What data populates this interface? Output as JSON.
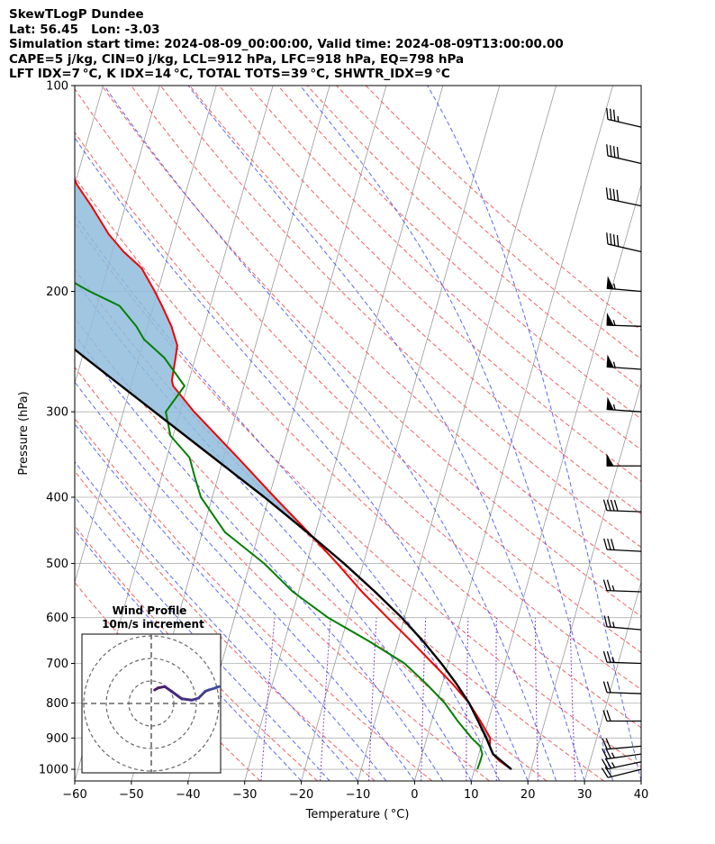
{
  "header": {
    "title": "SkewTLogP Dundee",
    "location": "Lat: 56.45   Lon: -3.03",
    "times": "Simulation start time: 2024-08-09_00:00:00, Valid time: 2024-08-09T13:00:00.00",
    "params": "CAPE=5 j/kg, CIN=0 j/kg, LCL=912 hPa, LFC=918 hPa, EQ=798 hPa",
    "indices": "LFT IDX=7$^\\circ$C, K IDX=14$^\\circ$C, TOTAL TOTS=39$^\\circ$C, SHWTR_IDX=9$^\\circ$C"
  },
  "chart_data": {
    "type": "line",
    "title": "",
    "xlabel": "Temperature ($^\\circ$C)",
    "ylabel": "Pressure (hPa)",
    "xlim": [
      -60,
      40
    ],
    "ylim": [
      1040,
      100
    ],
    "y_scale": "log",
    "skew": 35,
    "x_ticks": [
      -60,
      -50,
      -40,
      -30,
      -20,
      -10,
      0,
      10,
      20,
      30,
      40
    ],
    "x_tick_labels": [
      "−60",
      "−50",
      "−40",
      "−30",
      "−20",
      "−10",
      "0",
      "10",
      "20",
      "30",
      "40"
    ],
    "y_ticks": [
      1000,
      900,
      800,
      700,
      600,
      500,
      400,
      300,
      200,
      100
    ],
    "y_tick_labels": [
      "1000",
      "900",
      "800",
      "700",
      "600",
      "500",
      "400",
      "300",
      "200",
      "100"
    ],
    "grid": true,
    "colors": {
      "temperature": "#ee0000",
      "dewpoint": "#008000",
      "parcel": "#000000",
      "cape_fill": "#8fbcdc",
      "dry_adiabat": "#ee4444",
      "moist_adiabat": "#3344ee",
      "mixing_ratio": "#6a1fbf",
      "isotherm": "#9a9a9a"
    },
    "series": [
      {
        "role": "temperature",
        "pressure": [
          1000,
          970,
          950,
          925,
          900,
          850,
          800,
          750,
          700,
          650,
          600,
          550,
          500,
          450,
          400,
          350,
          300,
          275,
          270,
          250,
          240,
          225,
          210,
          200,
          185,
          175,
          165,
          150,
          140,
          125,
          110,
          100
        ],
        "values": [
          16.5,
          13.8,
          12.5,
          11.5,
          11.2,
          8.6,
          5.7,
          1.8,
          -2.7,
          -7.6,
          -13.0,
          -18.8,
          -24.6,
          -31.3,
          -39.0,
          -47.5,
          -57.5,
          -62.5,
          -63.0,
          -63.5,
          -63.8,
          -65.8,
          -68.5,
          -70.5,
          -74.0,
          -78.0,
          -81.5,
          -86.0,
          -89.5,
          -94.0,
          -97.0,
          -99.0
        ]
      },
      {
        "role": "dewpoint",
        "pressure": [
          1000,
          970,
          950,
          925,
          900,
          850,
          800,
          750,
          700,
          650,
          600,
          550,
          500,
          450,
          400,
          375,
          350,
          325,
          300,
          275,
          250,
          235,
          225,
          210,
          200,
          185,
          175,
          165,
          155,
          140,
          130,
          120,
          100
        ],
        "values": [
          10.5,
          10.6,
          10.6,
          9.8,
          7.9,
          4.6,
          1.4,
          -2.8,
          -7.7,
          -15.0,
          -23.5,
          -31.0,
          -37.5,
          -46.0,
          -52.0,
          -54.0,
          -56.0,
          -60.5,
          -62.5,
          -60.5,
          -65.5,
          -70.0,
          -72.0,
          -76.0,
          -82.0,
          -90.5,
          -92.0,
          -95.5,
          -94.0,
          -97.5,
          -97.5,
          -100.0,
          -107.0
        ]
      },
      {
        "role": "parcel",
        "pressure": [
          1000,
          950,
          925,
          900,
          850,
          800,
          750,
          700,
          650,
          600,
          550,
          500,
          450,
          400,
          350,
          300,
          250,
          200,
          150,
          100
        ],
        "values": [
          16.5,
          12.5,
          11.5,
          10.5,
          8.2,
          5.7,
          2.5,
          -1.2,
          -5.5,
          -10.5,
          -16.5,
          -23.4,
          -31.5,
          -40.8,
          -51.8,
          -64.5,
          -79.5,
          -97.5,
          -121.0,
          -153.0
        ]
      }
    ],
    "wind_barbs": [
      {
        "pressure": 1000,
        "speed_kt": 20,
        "direction_deg": 256
      },
      {
        "pressure": 975,
        "speed_kt": 25,
        "direction_deg": 258
      },
      {
        "pressure": 950,
        "speed_kt": 25,
        "direction_deg": 262
      },
      {
        "pressure": 925,
        "speed_kt": 20,
        "direction_deg": 265
      },
      {
        "pressure": 850,
        "speed_kt": 20,
        "direction_deg": 270
      },
      {
        "pressure": 775,
        "speed_kt": 20,
        "direction_deg": 272
      },
      {
        "pressure": 700,
        "speed_kt": 25,
        "direction_deg": 272
      },
      {
        "pressure": 625,
        "speed_kt": 25,
        "direction_deg": 275
      },
      {
        "pressure": 550,
        "speed_kt": 25,
        "direction_deg": 272
      },
      {
        "pressure": 480,
        "speed_kt": 30,
        "direction_deg": 273
      },
      {
        "pressure": 420,
        "speed_kt": 40,
        "direction_deg": 272
      },
      {
        "pressure": 360,
        "speed_kt": 50,
        "direction_deg": 270
      },
      {
        "pressure": 300,
        "speed_kt": 55,
        "direction_deg": 274
      },
      {
        "pressure": 260,
        "speed_kt": 55,
        "direction_deg": 274
      },
      {
        "pressure": 225,
        "speed_kt": 55,
        "direction_deg": 272
      },
      {
        "pressure": 200,
        "speed_kt": 55,
        "direction_deg": 275
      },
      {
        "pressure": 175,
        "speed_kt": 40,
        "direction_deg": 283
      },
      {
        "pressure": 150,
        "speed_kt": 40,
        "direction_deg": 282
      },
      {
        "pressure": 130,
        "speed_kt": 40,
        "direction_deg": 283
      },
      {
        "pressure": 115,
        "speed_kt": 35,
        "direction_deg": 283
      }
    ],
    "hodograph": {
      "title": "Wind Profile",
      "subtitle": "10m/s increment",
      "ring_step": 10,
      "rings": 3,
      "u": [
        10,
        9.5,
        8.5,
        8,
        7,
        6,
        4.5,
        3,
        2,
        1,
        0.5
      ],
      "v": [
        2.5,
        2.3,
        2,
        1.8,
        0.8,
        0.5,
        0.7,
        1.8,
        2.5,
        2.3,
        2
      ]
    }
  }
}
